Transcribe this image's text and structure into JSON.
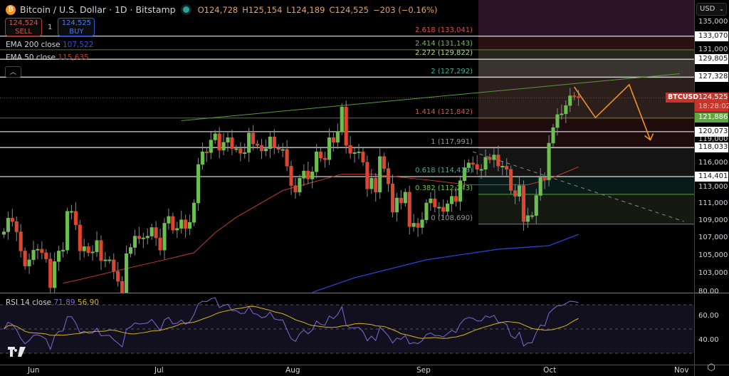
{
  "header": {
    "symbol_title": "Bitcoin / U.S. Dollar · 1D · Bitstamp",
    "open": "O124,728",
    "high": "H125,154",
    "low": "L124,189",
    "close": "C124,525",
    "change": "−203 (−0.16%)"
  },
  "trade": {
    "sell_price": "124,524",
    "sell_label": "SELL",
    "qty": "1",
    "buy_price": "124,525",
    "buy_label": "BUY"
  },
  "indicators": {
    "ema200_label": "EMA 200 close",
    "ema200_value": "107,522",
    "ema50_label": "EMA 50 close",
    "ema50_value": "115,635",
    "rsi_label": "RSI 14 close",
    "rsi_value": "71.89",
    "rsi_ma_value": "56.90"
  },
  "currency": "USD",
  "price_axis": [
    "135,000",
    "131,000",
    "119,000",
    "116,000",
    "113,000",
    "111,000",
    "109,000",
    "107,000",
    "105,000",
    "103,000"
  ],
  "rsi_axis": [
    "80.00",
    "60.00",
    "40.00"
  ],
  "time_axis": [
    "Jun",
    "Jul",
    "Aug",
    "Sep",
    "Oct",
    "Nov"
  ],
  "level_badges": [
    "133,070",
    "129,805",
    "127,328",
    "120,073",
    "118,033",
    "114,401"
  ],
  "current": {
    "symbol": "BTCUSD",
    "price": "124,525",
    "countdown": "18:28:02",
    "ema_badge": "121,886"
  },
  "fib_levels": [
    {
      "ratio": "2.618",
      "price": "133,041",
      "label": "2.618 (133,041)",
      "color": "#d9534f"
    },
    {
      "ratio": "2.414",
      "price": "131,143",
      "label": "2.414 (131,143)",
      "color": "#6fbf4a"
    },
    {
      "ratio": "2.272",
      "price": "129,822",
      "label": "2.272 (129,822)",
      "color": "#b5d98a"
    },
    {
      "ratio": "2",
      "price": "127,292",
      "label": "2 (127,292)",
      "color": "#3fae9a"
    },
    {
      "ratio": "1.414",
      "price": "121,842",
      "label": "1.414 (121,842)",
      "color": "#d9534f"
    },
    {
      "ratio": "1",
      "price": "117,991",
      "label": "1 (117,991)",
      "color": "#9a9a9a"
    },
    {
      "ratio": "0.618",
      "price": "114,418",
      "label": "0.618 (114,418)",
      "color": "#3fae9a"
    },
    {
      "ratio": "0.382",
      "price": "112,243",
      "label": "0.382 (112,243)",
      "color": "#6fbf4a"
    },
    {
      "ratio": "0",
      "price": "108,690",
      "label": "0 (108,690)",
      "color": "#9a9a9a"
    }
  ],
  "colors": {
    "up": "#6cbf4f",
    "down": "#e0452f",
    "ema50": "#c0392b",
    "ema200": "#2b3fd6",
    "rsi": "#7e6bd6",
    "rsi_ma": "#d4b420",
    "projection": "#f0912a"
  },
  "chart_data": {
    "type": "candlestick",
    "start_date": "2025-05-25",
    "closes": [
      107.8,
      109.4,
      109.0,
      107.8,
      105.6,
      103.9,
      104.6,
      105.7,
      105.8,
      105.4,
      104.7,
      101.5,
      104.4,
      105.6,
      105.7,
      110.2,
      110.2,
      108.6,
      105.6,
      106.1,
      105.4,
      105.5,
      106.8,
      104.5,
      104.6,
      104.6,
      103.3,
      102.2,
      100.9,
      105.3,
      106.0,
      107.3,
      107.0,
      107.1,
      107.3,
      108.3,
      107.1,
      105.7,
      108.8,
      109.6,
      108.0,
      108.2,
      109.2,
      108.2,
      108.9,
      111.2,
      115.9,
      117.5,
      117.4,
      119.0,
      119.8,
      117.7,
      118.7,
      119.3,
      117.9,
      117.9,
      117.3,
      117.4,
      119.9,
      118.5,
      118.3,
      117.6,
      117.9,
      119.4,
      118.0,
      117.8,
      117.8,
      115.7,
      113.3,
      112.5,
      114.2,
      115.1,
      114.1,
      115.0,
      117.5,
      116.7,
      116.5,
      119.3,
      118.7,
      120.1,
      123.3,
      118.3,
      117.3,
      117.4,
      117.5,
      116.2,
      112.9,
      114.2,
      112.5,
      116.9,
      115.4,
      113.5,
      110.1,
      111.8,
      111.2,
      112.5,
      108.4,
      108.8,
      108.3,
      109.2,
      111.2,
      111.7,
      110.7,
      110.7,
      110.2,
      111.1,
      112.0,
      111.4,
      113.9,
      115.5,
      116.1,
      115.9,
      115.3,
      115.3,
      116.8,
      116.5,
      117.1,
      115.7,
      115.7,
      115.3,
      112.7,
      112.0,
      113.3,
      109.0,
      109.7,
      109.7,
      112.1,
      114.3,
      114.0,
      118.6,
      120.6,
      122.3,
      122.4,
      123.5,
      124.8,
      124.7,
      124.525
    ],
    "value_unit": "thousand USD",
    "ema50": [
      [
        14,
        102.0
      ],
      [
        18,
        102.4
      ],
      [
        26,
        103.3
      ],
      [
        38,
        104.6
      ],
      [
        45,
        105.4
      ],
      [
        50,
        107.7
      ],
      [
        55,
        109.5
      ],
      [
        66,
        112.7
      ],
      [
        80,
        114.7
      ],
      [
        87,
        114.7
      ],
      [
        100,
        114.0
      ],
      [
        110,
        113.4
      ],
      [
        124,
        113.4
      ],
      [
        127,
        113.8
      ],
      [
        130,
        114.3
      ],
      [
        136,
        115.6
      ]
    ],
    "ema200": [
      [
        73,
        101.0
      ],
      [
        83,
        102.6
      ],
      [
        100,
        104.6
      ],
      [
        117,
        105.8
      ],
      [
        129,
        106.2
      ],
      [
        136,
        107.5
      ]
    ],
    "resistance_trendline": [
      [
        42,
        121.5
      ],
      [
        160,
        127.8
      ]
    ],
    "descending_trendline": [
      [
        111,
        117.5
      ],
      [
        161,
        109.0
      ]
    ],
    "projection_path": [
      [
        135,
        126.0
      ],
      [
        140,
        121.9
      ],
      [
        148,
        126.3
      ],
      [
        153,
        119.0
      ]
    ],
    "y_scale": "log"
  }
}
